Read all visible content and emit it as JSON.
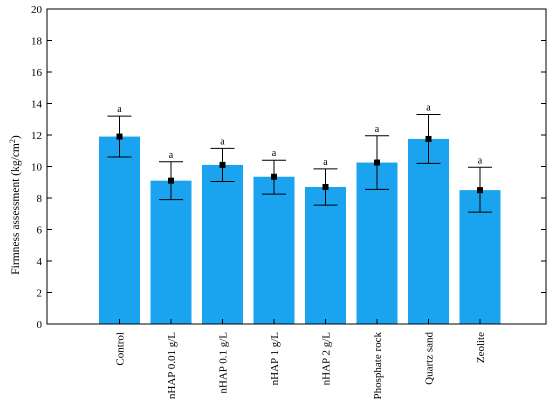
{
  "chart_data": {
    "type": "bar",
    "title": "",
    "xlabel": "",
    "ylabel_main": "Firmness assessment (kg/cm",
    "ylabel_sup": "2",
    "ylabel_close": ")",
    "ylim": [
      0,
      20
    ],
    "yticks": [
      0,
      2,
      4,
      6,
      8,
      10,
      12,
      14,
      16,
      18,
      20
    ],
    "grid": false,
    "legend": "none",
    "bar_color": "#1aa3ef",
    "marker_color": "#000000",
    "categories": [
      "Control",
      "nHAP 0.01 g/L",
      "nHAP 0.1 g/L",
      "nHAP 1 g/L",
      "nHAP 2 g/L",
      "Phosphate rock",
      "Quartz sand",
      "Zeolite"
    ],
    "values": [
      11.9,
      9.1,
      10.1,
      9.35,
      8.7,
      10.25,
      11.75,
      8.5
    ],
    "error_high": [
      13.2,
      10.3,
      11.15,
      10.4,
      9.85,
      11.95,
      13.3,
      9.95
    ],
    "error_low": [
      10.6,
      7.9,
      9.05,
      8.25,
      7.55,
      8.55,
      10.2,
      7.1
    ],
    "significance": [
      "a",
      "a",
      "a",
      "a",
      "a",
      "a",
      "a",
      "a"
    ]
  }
}
